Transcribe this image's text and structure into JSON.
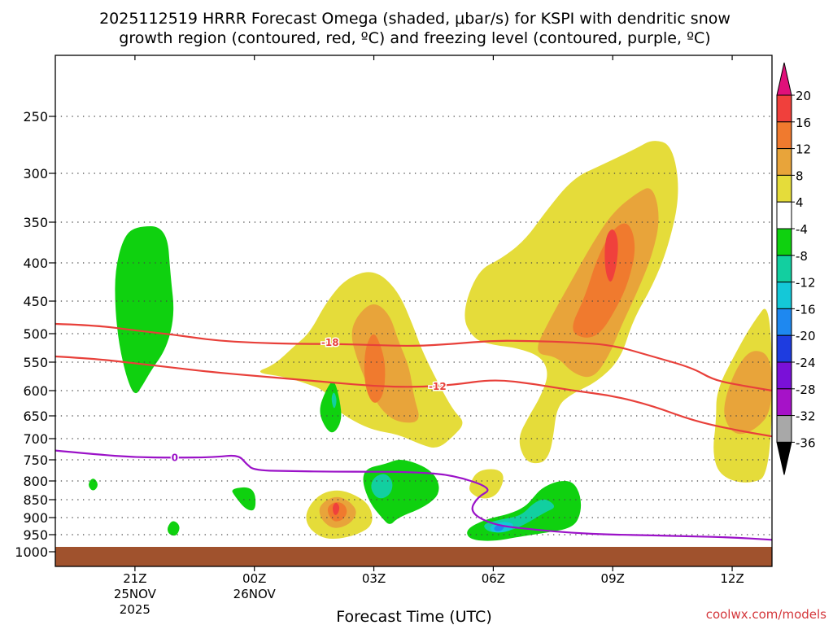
{
  "chart_data": {
    "type": "time-height contour",
    "title_line1": "2025112519 HRRR Forecast Omega (shaded, μbar/s) for KSPI with dendritic snow",
    "title_line2": "growth region (contoured, red, ºC) and freezing level (contoured, purple, ºC)",
    "xlabel": "Forecast Time (UTC)",
    "credit": "coolwx.com/models",
    "x_ticks": [
      {
        "hour": 21,
        "label": "21Z",
        "sub1": "25NOV",
        "sub2": "2025"
      },
      {
        "hour": 24,
        "label": "00Z",
        "sub1": "26NOV",
        "sub2": ""
      },
      {
        "hour": 27,
        "label": "03Z",
        "sub1": "",
        "sub2": ""
      },
      {
        "hour": 30,
        "label": "06Z",
        "sub1": "",
        "sub2": ""
      },
      {
        "hour": 33,
        "label": "09Z",
        "sub1": "",
        "sub2": ""
      },
      {
        "hour": 36,
        "label": "12Z",
        "sub1": "",
        "sub2": ""
      }
    ],
    "xlim_hours": [
      19,
      37
    ],
    "y_ticks_hpa": [
      250,
      300,
      350,
      400,
      450,
      500,
      550,
      600,
      650,
      700,
      750,
      800,
      850,
      900,
      950,
      1000
    ],
    "ylim_hpa": [
      200,
      1000
    ],
    "colorbar": {
      "labels": [
        "20",
        "16",
        "12",
        "8",
        "4",
        "-4",
        "-8",
        "-12",
        "-16",
        "-20",
        "-24",
        "-28",
        "-32",
        "-36"
      ],
      "bins": [
        {
          "range": "> 20",
          "color": "#e0107a"
        },
        {
          "range": "16 to 20",
          "color": "#f0403c"
        },
        {
          "range": "12 to 16",
          "color": "#f07a2e"
        },
        {
          "range": "8 to 12",
          "color": "#e8a43a"
        },
        {
          "range": "4 to 8",
          "color": "#e5dc3a"
        },
        {
          "range": "-4 to 4",
          "color": "#ffffff"
        },
        {
          "range": "-8 to -4",
          "color": "#0fd10f"
        },
        {
          "range": "-12 to -8",
          "color": "#12cfa0"
        },
        {
          "range": "-16 to -12",
          "color": "#14c8d8"
        },
        {
          "range": "-20 to -16",
          "color": "#1e88f0"
        },
        {
          "range": "-24 to -20",
          "color": "#1e3ce0"
        },
        {
          "range": "-28 to -24",
          "color": "#7a10d8"
        },
        {
          "range": "-32 to -28",
          "color": "#a612c8"
        },
        {
          "range": "-36 to -32",
          "color": "#a8a8a8"
        },
        {
          "range": "< -36",
          "color": "#000000"
        }
      ]
    },
    "contours": [
      {
        "name": "-18 C isotherm",
        "label": "-18",
        "color": "#e8403a",
        "points": [
          [
            19,
            485
          ],
          [
            20,
            487
          ],
          [
            21,
            495
          ],
          [
            22,
            502
          ],
          [
            23,
            512
          ],
          [
            24,
            516
          ],
          [
            25,
            518
          ],
          [
            26,
            518
          ],
          [
            27,
            520
          ],
          [
            28,
            522
          ],
          [
            29,
            518
          ],
          [
            30,
            512
          ],
          [
            31,
            513
          ],
          [
            32,
            515
          ],
          [
            33,
            520
          ],
          [
            34,
            540
          ],
          [
            35,
            560
          ],
          [
            35.5,
            580
          ],
          [
            36,
            588
          ],
          [
            37,
            600
          ]
        ]
      },
      {
        "name": "-12 C isotherm",
        "label": "-12",
        "color": "#e8403a",
        "points": [
          [
            19,
            540
          ],
          [
            20,
            544
          ],
          [
            21,
            552
          ],
          [
            22,
            560
          ],
          [
            23,
            568
          ],
          [
            24,
            574
          ],
          [
            25,
            580
          ],
          [
            26,
            586
          ],
          [
            27,
            592
          ],
          [
            28,
            594
          ],
          [
            29,
            590
          ],
          [
            30,
            580
          ],
          [
            31,
            588
          ],
          [
            32,
            600
          ],
          [
            33,
            610
          ],
          [
            34,
            630
          ],
          [
            35,
            660
          ],
          [
            36,
            680
          ],
          [
            37,
            695
          ]
        ]
      },
      {
        "name": "0 C freezing level",
        "label": "0",
        "color": "#9b12c8",
        "points": [
          [
            19,
            728
          ],
          [
            20,
            737
          ],
          [
            21,
            744
          ],
          [
            22,
            745
          ],
          [
            23,
            744
          ],
          [
            23.6,
            738
          ],
          [
            23.8,
            760
          ],
          [
            24,
            775
          ],
          [
            25,
            777
          ],
          [
            26,
            778
          ],
          [
            27,
            778
          ],
          [
            28,
            779
          ],
          [
            29,
            786
          ],
          [
            30,
            820
          ],
          [
            29.6,
            843
          ],
          [
            29.4,
            885
          ],
          [
            30,
            922
          ],
          [
            31,
            935
          ],
          [
            32,
            945
          ],
          [
            33,
            950
          ],
          [
            34,
            952
          ],
          [
            35,
            955
          ],
          [
            36,
            958
          ],
          [
            37,
            965
          ]
        ]
      }
    ],
    "omega_regions": [
      {
        "range": "-8 to -4",
        "hours_span": [
          20.5,
          21.8
        ],
        "hpa_span": [
          355,
          610
        ]
      },
      {
        "range": "4 to 8",
        "hours_span": [
          24.5,
          29.2
        ],
        "hpa_span": [
          405,
          720
        ]
      },
      {
        "range": "12 to 16",
        "hours_span": [
          26.8,
          27.4
        ],
        "hpa_span": [
          500,
          650
        ]
      },
      {
        "range": "16 to 20",
        "hours_span": [
          32.7,
          33.2
        ],
        "hpa_span": [
          355,
          430
        ]
      },
      {
        "range": "4 to 8",
        "hours_span": [
          35.7,
          37
        ],
        "hpa_span": [
          445,
          810
        ]
      },
      {
        "range": "8 to 12",
        "hours_span": [
          36,
          37
        ],
        "hpa_span": [
          530,
          700
        ]
      },
      {
        "range": "16 to 20",
        "hours_span": [
          25.8,
          26.2
        ],
        "hpa_span": [
          850,
          890
        ]
      },
      {
        "range": "-12 to -8",
        "hours_span": [
          27,
          27.2
        ],
        "hpa_span": [
          780,
          850
        ]
      },
      {
        "range": "-20 to -16",
        "hours_span": [
          29.9,
          30.3
        ],
        "hpa_span": [
          920,
          960
        ]
      }
    ]
  }
}
